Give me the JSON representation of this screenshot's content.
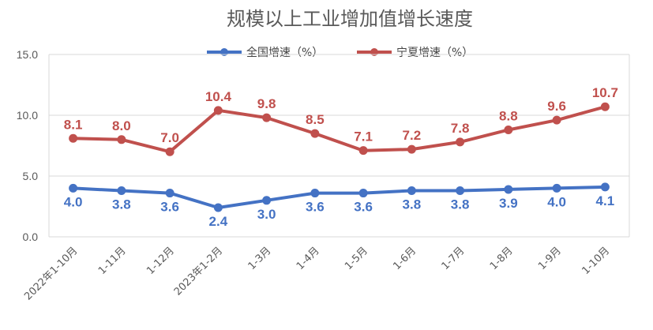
{
  "chart_data": {
    "type": "line",
    "title": "规模以上工业增加值增长速度",
    "categories": [
      "2022年1-10月",
      "1-11月",
      "1-12月",
      "2023年1-2月",
      "1-3月",
      "1-4月",
      "1-5月",
      "1-6月",
      "1-7月",
      "1-8月",
      "1-9月",
      "1-10月"
    ],
    "series": [
      {
        "name": "全国增速（%）",
        "color": "#4472C4",
        "values": [
          4.0,
          3.8,
          3.6,
          2.4,
          3.0,
          3.6,
          3.6,
          3.8,
          3.8,
          3.9,
          4.0,
          4.1
        ],
        "labels": [
          "4.0",
          "3.8",
          "3.6",
          "2.4",
          "3.0",
          "3.6",
          "3.6",
          "3.8",
          "3.8",
          "3.9",
          "4.0",
          "4.1"
        ]
      },
      {
        "name": "宁夏增速（%）",
        "color": "#C0504D",
        "values": [
          8.1,
          8.0,
          7.0,
          10.4,
          9.8,
          8.5,
          7.1,
          7.2,
          7.8,
          8.8,
          9.6,
          10.7
        ],
        "labels": [
          "8.1",
          "8.0",
          "7.0",
          "10.4",
          "9.8",
          "8.5",
          "7.1",
          "7.2",
          "7.8",
          "8.8",
          "9.6",
          "10.7"
        ]
      }
    ],
    "yticks": [
      "0.0",
      "5.0",
      "10.0",
      "15.0"
    ],
    "ylim": [
      0,
      15
    ],
    "legend_position": "top-center",
    "grid": true
  }
}
